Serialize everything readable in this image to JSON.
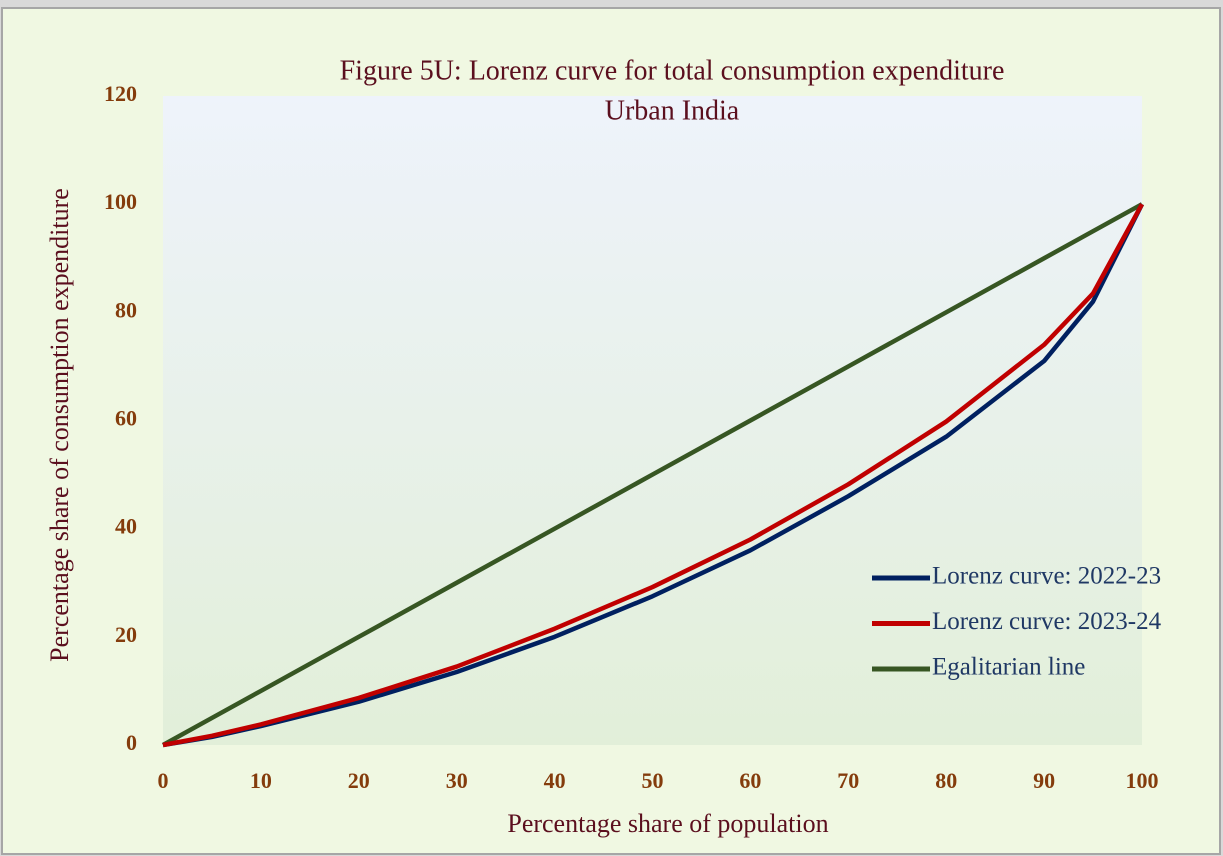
{
  "chart_data": {
    "type": "line",
    "title": "Figure 5U: Lorenz curve for total consumption expenditure",
    "subtitle": "Urban India",
    "x_label": "Percentage share of population",
    "y_label": "Percentage share of consumption expenditure",
    "x": [
      0,
      5,
      10,
      20,
      30,
      40,
      50,
      60,
      70,
      80,
      90,
      95,
      100
    ],
    "series": [
      {
        "name": "Lorenz curve: 2022-23",
        "color": "#002060",
        "values": [
          0,
          1.5,
          3.5,
          8,
          13.5,
          20,
          27.5,
          36,
          46,
          57,
          71,
          82,
          100
        ]
      },
      {
        "name": "Lorenz curve: 2023-24",
        "color": "#c00000",
        "values": [
          0,
          1.7,
          3.8,
          8.7,
          14.5,
          21.5,
          29.2,
          38,
          48.2,
          59.8,
          74,
          83.5,
          100
        ]
      },
      {
        "name": "Egalitarian line",
        "color": "#375623",
        "values": [
          0,
          5,
          10,
          20,
          30,
          40,
          50,
          60,
          70,
          80,
          90,
          95,
          100
        ]
      }
    ],
    "xlim": [
      0,
      100
    ],
    "xticks": [
      0,
      10,
      20,
      30,
      40,
      50,
      60,
      70,
      80,
      90,
      100
    ],
    "ylim": [
      0,
      120
    ],
    "yticks": [
      0,
      20,
      40,
      60,
      80,
      100,
      120
    ],
    "legend": "lower right"
  }
}
